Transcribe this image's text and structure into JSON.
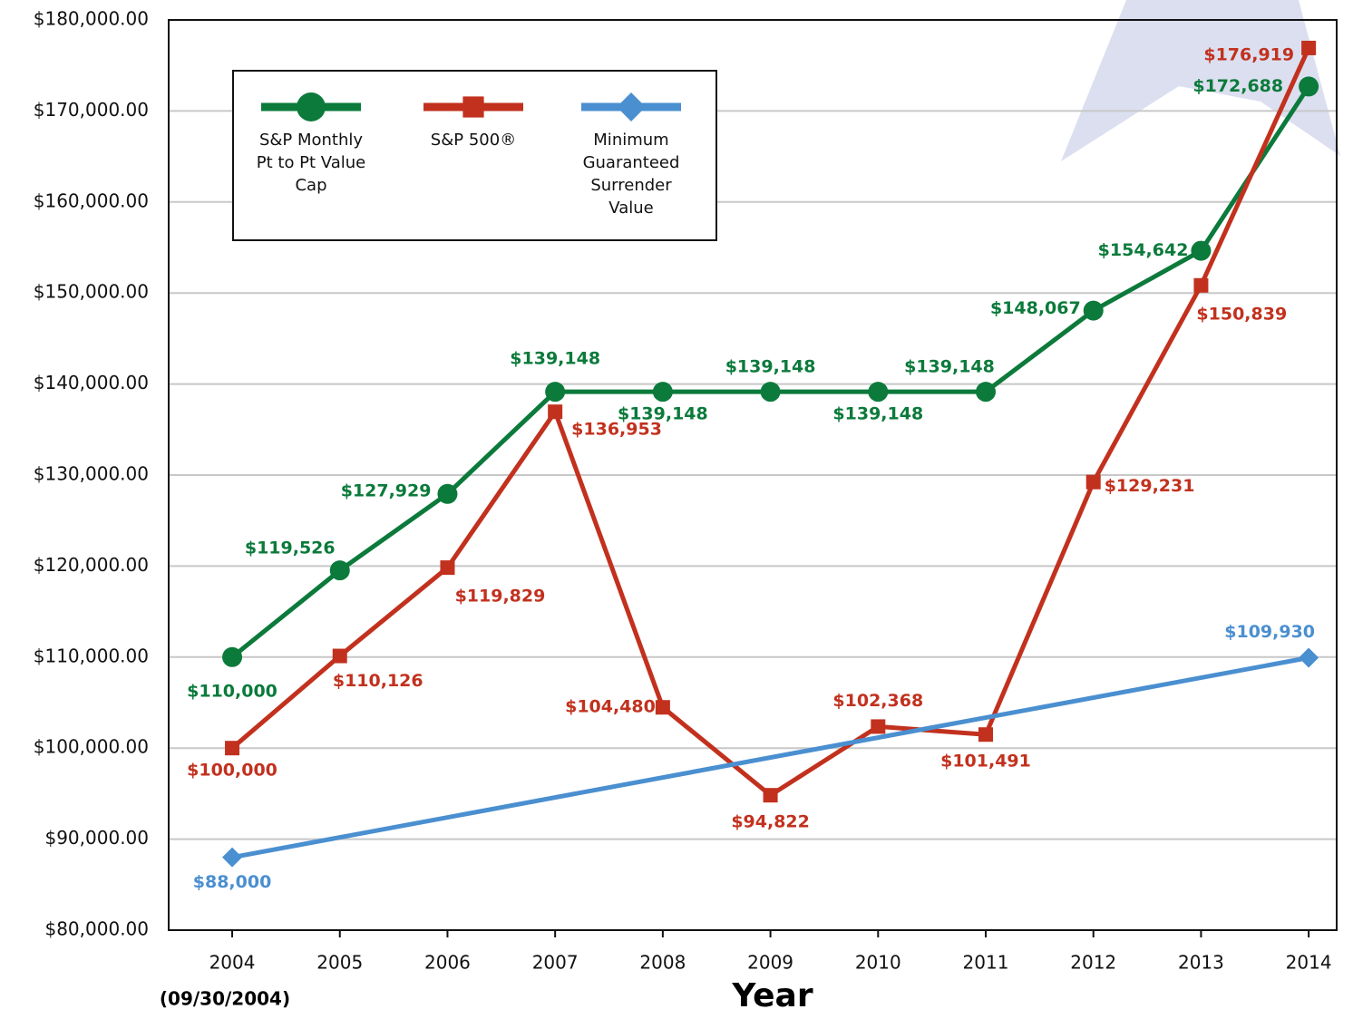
{
  "chart_data": {
    "type": "line",
    "x_label": "Year",
    "annotation": "(09/30/2004)",
    "x": [
      2004,
      2005,
      2006,
      2007,
      2008,
      2009,
      2010,
      2011,
      2012,
      2013,
      2014
    ],
    "xlim": [
      2003.41,
      2014.26
    ],
    "xticks": [
      2004,
      2005,
      2006,
      2007,
      2008,
      2009,
      2010,
      2011,
      2012,
      2013,
      2014
    ],
    "ylim": [
      80000,
      180000
    ],
    "yticks": [
      {
        "value": 80000,
        "label": "$80,000.00"
      },
      {
        "value": 90000,
        "label": "$90,000.00"
      },
      {
        "value": 100000,
        "label": "$100,000.00"
      },
      {
        "value": 110000,
        "label": "$110,000.00"
      },
      {
        "value": 120000,
        "label": "$120,000.00"
      },
      {
        "value": 130000,
        "label": "$130,000.00"
      },
      {
        "value": 140000,
        "label": "$140,000.00"
      },
      {
        "value": 150000,
        "label": "$150,000.00"
      },
      {
        "value": 160000,
        "label": "$160,000.00"
      },
      {
        "value": 170000,
        "label": "$170,000.00"
      },
      {
        "value": 180000,
        "label": "$180,000.00"
      }
    ],
    "grid": true,
    "legend": "upper left",
    "series": [
      {
        "name": "S&P Monthly Pt to Pt Value Cap",
        "color": "#0b7a3b",
        "marker": "circle",
        "values": [
          110000,
          119526,
          127929,
          139148,
          139148,
          139148,
          139148,
          139148,
          148067,
          154642,
          172688
        ],
        "value_labels": [
          "$110,000",
          "$119,526",
          "$127,929",
          "$139,148",
          "$139,148",
          "$139,148",
          "$139,148",
          "$139,148",
          "$148,067",
          "$154,642",
          "$172,688"
        ]
      },
      {
        "name": "S&P 500®",
        "color": "#c2311e",
        "marker": "square",
        "values": [
          100000,
          110126,
          119829,
          136953,
          104480,
          94822,
          102368,
          101491,
          129231,
          150839,
          176919
        ],
        "value_labels": [
          "$100,000",
          "$110,126",
          "$119,829",
          "$136,953",
          "$104,480",
          "$94,822",
          "$102,368",
          "$101,491",
          "$129,231",
          "$150,839",
          "$176,919"
        ]
      },
      {
        "name": "Minimum Guaranteed Surrender Value",
        "color": "#4a8fd0",
        "marker": "diamond",
        "x": [
          2004,
          2014
        ],
        "values": [
          88000,
          109930
        ],
        "value_labels": [
          "$88,000",
          "$109,930"
        ]
      }
    ]
  }
}
